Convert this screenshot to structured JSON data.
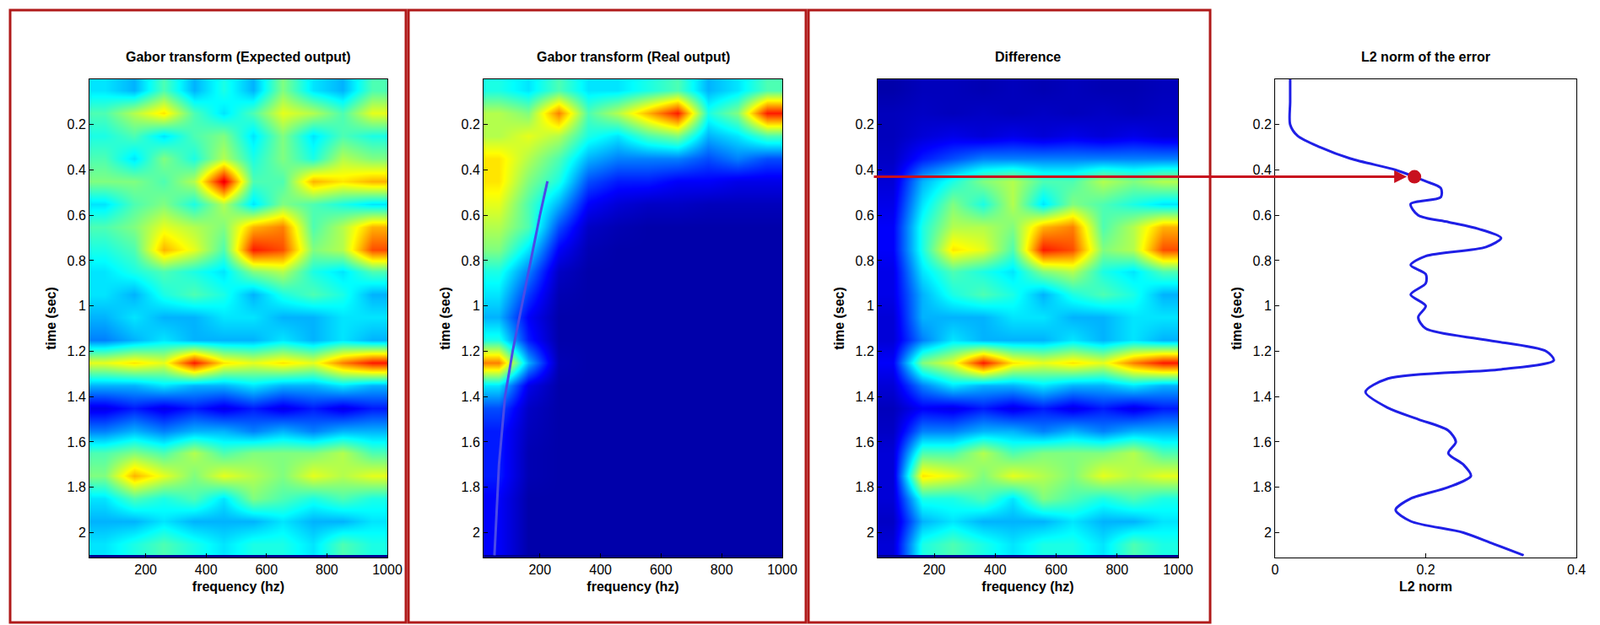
{
  "chart_data": [
    {
      "type": "heatmap",
      "title": "Gabor transform (Expected output)",
      "x_label": "frequency (hz)",
      "y_label": "time (sec)",
      "x": [
        63,
        162,
        261,
        359,
        458,
        557,
        655,
        754,
        852,
        951
      ],
      "y": [
        0.05,
        0.15,
        0.25,
        0.35,
        0.45,
        0.55,
        0.65,
        0.75,
        0.85,
        0.95,
        1.05,
        1.15,
        1.25,
        1.35,
        1.45,
        1.55,
        1.65,
        1.75,
        1.85,
        1.95,
        2.05
      ],
      "z": [
        [
          0.35,
          0.3,
          0.45,
          0.3,
          0.4,
          0.3,
          0.5,
          0.35,
          0.3,
          0.45
        ],
        [
          0.45,
          0.55,
          0.65,
          0.45,
          0.35,
          0.45,
          0.6,
          0.55,
          0.45,
          0.6
        ],
        [
          0.4,
          0.45,
          0.35,
          0.45,
          0.5,
          0.35,
          0.5,
          0.35,
          0.45,
          0.4
        ],
        [
          0.45,
          0.35,
          0.5,
          0.4,
          0.55,
          0.4,
          0.5,
          0.4,
          0.55,
          0.5
        ],
        [
          0.5,
          0.5,
          0.45,
          0.55,
          0.9,
          0.45,
          0.45,
          0.7,
          0.65,
          0.7
        ],
        [
          0.35,
          0.45,
          0.5,
          0.4,
          0.55,
          0.35,
          0.5,
          0.45,
          0.4,
          0.35
        ],
        [
          0.45,
          0.5,
          0.6,
          0.55,
          0.5,
          0.7,
          0.75,
          0.45,
          0.55,
          0.7
        ],
        [
          0.4,
          0.45,
          0.7,
          0.6,
          0.45,
          0.85,
          0.8,
          0.5,
          0.55,
          0.8
        ],
        [
          0.35,
          0.4,
          0.45,
          0.4,
          0.35,
          0.5,
          0.55,
          0.4,
          0.35,
          0.45
        ],
        [
          0.35,
          0.3,
          0.4,
          0.45,
          0.4,
          0.3,
          0.4,
          0.45,
          0.4,
          0.3
        ],
        [
          0.3,
          0.35,
          0.3,
          0.3,
          0.35,
          0.35,
          0.3,
          0.3,
          0.35,
          0.35
        ],
        [
          0.25,
          0.3,
          0.35,
          0.3,
          0.3,
          0.3,
          0.35,
          0.3,
          0.35,
          0.3
        ],
        [
          0.6,
          0.65,
          0.6,
          0.85,
          0.65,
          0.6,
          0.65,
          0.6,
          0.75,
          0.85
        ],
        [
          0.3,
          0.3,
          0.35,
          0.3,
          0.3,
          0.35,
          0.3,
          0.3,
          0.35,
          0.3
        ],
        [
          0.1,
          0.15,
          0.1,
          0.15,
          0.1,
          0.15,
          0.1,
          0.15,
          0.1,
          0.15
        ],
        [
          0.25,
          0.3,
          0.25,
          0.3,
          0.3,
          0.25,
          0.3,
          0.25,
          0.3,
          0.3
        ],
        [
          0.45,
          0.5,
          0.45,
          0.55,
          0.45,
          0.5,
          0.5,
          0.5,
          0.55,
          0.45
        ],
        [
          0.5,
          0.7,
          0.6,
          0.5,
          0.6,
          0.55,
          0.5,
          0.6,
          0.55,
          0.6
        ],
        [
          0.35,
          0.45,
          0.4,
          0.45,
          0.35,
          0.5,
          0.45,
          0.4,
          0.45,
          0.4
        ],
        [
          0.3,
          0.3,
          0.35,
          0.3,
          0.3,
          0.3,
          0.35,
          0.3,
          0.3,
          0.35
        ],
        [
          0.35,
          0.4,
          0.45,
          0.4,
          0.35,
          0.4,
          0.4,
          0.35,
          0.45,
          0.4
        ]
      ],
      "zlim": [
        0,
        1
      ],
      "xlim": [
        14,
        1000
      ],
      "xticks": [
        200,
        400,
        600,
        800,
        1000
      ],
      "ylim": [
        0,
        2.11
      ],
      "yticks": [
        0.2,
        0.4,
        0.6,
        0.8,
        1,
        1.2,
        1.4,
        1.6,
        1.8,
        2
      ]
    },
    {
      "type": "heatmap",
      "title": "Gabor transform (Real output)",
      "x_label": "frequency (hz)",
      "y_label": "time (sec)",
      "x": [
        63,
        162,
        261,
        359,
        458,
        557,
        655,
        754,
        852,
        951
      ],
      "y": [
        0.05,
        0.15,
        0.25,
        0.35,
        0.45,
        0.55,
        0.65,
        0.75,
        0.85,
        0.95,
        1.05,
        1.15,
        1.25,
        1.35,
        1.45,
        1.55,
        1.65,
        1.75,
        1.85,
        1.95,
        2.05
      ],
      "z": [
        [
          0.4,
          0.35,
          0.45,
          0.35,
          0.35,
          0.4,
          0.45,
          0.3,
          0.35,
          0.45
        ],
        [
          0.55,
          0.5,
          0.75,
          0.45,
          0.55,
          0.7,
          0.85,
          0.4,
          0.5,
          0.85
        ],
        [
          0.55,
          0.6,
          0.55,
          0.4,
          0.35,
          0.45,
          0.5,
          0.3,
          0.35,
          0.45
        ],
        [
          0.65,
          0.55,
          0.45,
          0.3,
          0.25,
          0.25,
          0.25,
          0.2,
          0.25,
          0.2
        ],
        [
          0.65,
          0.5,
          0.4,
          0.2,
          0.15,
          0.15,
          0.12,
          0.12,
          0.1,
          0.1
        ],
        [
          0.6,
          0.45,
          0.3,
          0.12,
          0.08,
          0.06,
          0.06,
          0.05,
          0.05,
          0.05
        ],
        [
          0.55,
          0.45,
          0.2,
          0.06,
          0.04,
          0.03,
          0.03,
          0.03,
          0.03,
          0.03
        ],
        [
          0.5,
          0.35,
          0.12,
          0.04,
          0.03,
          0.03,
          0.03,
          0.03,
          0.03,
          0.03
        ],
        [
          0.4,
          0.25,
          0.06,
          0.03,
          0.03,
          0.03,
          0.03,
          0.03,
          0.03,
          0.03
        ],
        [
          0.35,
          0.18,
          0.04,
          0.03,
          0.03,
          0.03,
          0.03,
          0.03,
          0.03,
          0.03
        ],
        [
          0.3,
          0.12,
          0.03,
          0.03,
          0.03,
          0.03,
          0.03,
          0.03,
          0.03,
          0.03
        ],
        [
          0.4,
          0.15,
          0.03,
          0.03,
          0.03,
          0.03,
          0.03,
          0.03,
          0.03,
          0.03
        ],
        [
          0.75,
          0.3,
          0.04,
          0.03,
          0.03,
          0.03,
          0.03,
          0.03,
          0.03,
          0.03
        ],
        [
          0.35,
          0.1,
          0.03,
          0.03,
          0.03,
          0.03,
          0.03,
          0.03,
          0.03,
          0.03
        ],
        [
          0.2,
          0.06,
          0.03,
          0.03,
          0.03,
          0.03,
          0.03,
          0.03,
          0.03,
          0.03
        ],
        [
          0.15,
          0.05,
          0.03,
          0.03,
          0.03,
          0.03,
          0.03,
          0.03,
          0.03,
          0.03
        ],
        [
          0.15,
          0.04,
          0.03,
          0.03,
          0.03,
          0.03,
          0.03,
          0.03,
          0.03,
          0.03
        ],
        [
          0.15,
          0.04,
          0.03,
          0.03,
          0.03,
          0.03,
          0.03,
          0.03,
          0.03,
          0.03
        ],
        [
          0.12,
          0.03,
          0.03,
          0.03,
          0.03,
          0.03,
          0.03,
          0.03,
          0.03,
          0.03
        ],
        [
          0.12,
          0.03,
          0.03,
          0.03,
          0.03,
          0.03,
          0.03,
          0.03,
          0.03,
          0.03
        ],
        [
          0.12,
          0.03,
          0.03,
          0.03,
          0.03,
          0.03,
          0.03,
          0.03,
          0.03,
          0.03
        ]
      ],
      "zlim": [
        0,
        1
      ],
      "curve": {
        "x": [
          225,
          200,
          170,
          140,
          110,
          85,
          65,
          50
        ],
        "y": [
          0.45,
          0.6,
          0.8,
          1.0,
          1.2,
          1.4,
          1.7,
          2.1
        ],
        "color": "#4a4ae8"
      },
      "xlim": [
        14,
        1000
      ],
      "xticks": [
        200,
        400,
        600,
        800,
        1000
      ],
      "ylim": [
        0,
        2.11
      ],
      "yticks": [
        0.2,
        0.4,
        0.6,
        0.8,
        1,
        1.2,
        1.4,
        1.6,
        1.8,
        2
      ]
    },
    {
      "type": "heatmap",
      "title": "Difference",
      "x_label": "frequency (hz)",
      "y_label": "time (sec)",
      "x": [
        63,
        162,
        261,
        359,
        458,
        557,
        655,
        754,
        852,
        951
      ],
      "y": [
        0.05,
        0.15,
        0.25,
        0.35,
        0.45,
        0.55,
        0.65,
        0.75,
        0.85,
        0.95,
        1.05,
        1.15,
        1.25,
        1.35,
        1.45,
        1.55,
        1.65,
        1.75,
        1.85,
        1.95,
        2.05
      ],
      "z": [
        [
          0.03,
          0.05,
          0.05,
          0.04,
          0.05,
          0.04,
          0.05,
          0.04,
          0.04,
          0.05
        ],
        [
          0.05,
          0.06,
          0.05,
          0.06,
          0.05,
          0.06,
          0.05,
          0.06,
          0.05,
          0.06
        ],
        [
          0.05,
          0.08,
          0.1,
          0.08,
          0.1,
          0.08,
          0.1,
          0.08,
          0.1,
          0.08
        ],
        [
          0.06,
          0.15,
          0.2,
          0.25,
          0.25,
          0.25,
          0.25,
          0.25,
          0.25,
          0.25
        ],
        [
          0.08,
          0.3,
          0.4,
          0.5,
          0.55,
          0.45,
          0.45,
          0.55,
          0.5,
          0.55
        ],
        [
          0.1,
          0.35,
          0.5,
          0.4,
          0.55,
          0.35,
          0.5,
          0.45,
          0.4,
          0.35
        ],
        [
          0.12,
          0.4,
          0.55,
          0.55,
          0.5,
          0.7,
          0.75,
          0.45,
          0.55,
          0.7
        ],
        [
          0.12,
          0.4,
          0.65,
          0.6,
          0.45,
          0.85,
          0.8,
          0.5,
          0.55,
          0.8
        ],
        [
          0.1,
          0.35,
          0.45,
          0.4,
          0.35,
          0.5,
          0.55,
          0.4,
          0.35,
          0.45
        ],
        [
          0.1,
          0.3,
          0.4,
          0.45,
          0.4,
          0.3,
          0.4,
          0.45,
          0.4,
          0.3
        ],
        [
          0.08,
          0.3,
          0.3,
          0.3,
          0.35,
          0.35,
          0.3,
          0.3,
          0.35,
          0.35
        ],
        [
          0.08,
          0.25,
          0.35,
          0.3,
          0.3,
          0.3,
          0.35,
          0.3,
          0.35,
          0.3
        ],
        [
          0.12,
          0.5,
          0.6,
          0.85,
          0.65,
          0.6,
          0.65,
          0.6,
          0.75,
          0.85
        ],
        [
          0.08,
          0.25,
          0.35,
          0.3,
          0.3,
          0.35,
          0.3,
          0.3,
          0.35,
          0.3
        ],
        [
          0.05,
          0.12,
          0.1,
          0.15,
          0.1,
          0.15,
          0.1,
          0.15,
          0.1,
          0.15
        ],
        [
          0.06,
          0.25,
          0.25,
          0.3,
          0.3,
          0.25,
          0.3,
          0.25,
          0.3,
          0.3
        ],
        [
          0.08,
          0.45,
          0.45,
          0.55,
          0.45,
          0.5,
          0.5,
          0.5,
          0.55,
          0.45
        ],
        [
          0.08,
          0.65,
          0.6,
          0.5,
          0.6,
          0.55,
          0.5,
          0.6,
          0.55,
          0.6
        ],
        [
          0.08,
          0.4,
          0.4,
          0.45,
          0.35,
          0.5,
          0.45,
          0.4,
          0.45,
          0.4
        ],
        [
          0.06,
          0.3,
          0.35,
          0.3,
          0.3,
          0.3,
          0.35,
          0.3,
          0.3,
          0.35
        ],
        [
          0.08,
          0.4,
          0.45,
          0.4,
          0.35,
          0.4,
          0.4,
          0.35,
          0.45,
          0.4
        ]
      ],
      "zlim": [
        0,
        1
      ],
      "xlim": [
        14,
        1000
      ],
      "xticks": [
        200,
        400,
        600,
        800,
        1000
      ],
      "ylim": [
        0,
        2.11
      ],
      "yticks": [
        0.2,
        0.4,
        0.6,
        0.8,
        1,
        1.2,
        1.4,
        1.6,
        1.8,
        2
      ]
    },
    {
      "type": "line",
      "title": "L2 norm of the error",
      "x_label": "L2 norm",
      "y_label": "time (sec)",
      "x": [
        0.02,
        0.02,
        0.02,
        0.03,
        0.06,
        0.1,
        0.16,
        0.185,
        0.2,
        0.22,
        0.22,
        0.18,
        0.19,
        0.23,
        0.27,
        0.3,
        0.28,
        0.2,
        0.18,
        0.2,
        0.2,
        0.18,
        0.2,
        0.19,
        0.2,
        0.28,
        0.36,
        0.37,
        0.3,
        0.15,
        0.12,
        0.15,
        0.19,
        0.23,
        0.24,
        0.23,
        0.25,
        0.26,
        0.23,
        0.18,
        0.16,
        0.18,
        0.25,
        0.29,
        0.33
      ],
      "y": [
        0.0,
        0.1,
        0.2,
        0.25,
        0.3,
        0.35,
        0.4,
        0.43,
        0.45,
        0.48,
        0.52,
        0.55,
        0.6,
        0.63,
        0.66,
        0.7,
        0.74,
        0.78,
        0.82,
        0.86,
        0.9,
        0.95,
        1.0,
        1.05,
        1.1,
        1.15,
        1.2,
        1.24,
        1.28,
        1.32,
        1.38,
        1.45,
        1.5,
        1.55,
        1.6,
        1.65,
        1.7,
        1.75,
        1.8,
        1.85,
        1.9,
        1.95,
        2.0,
        2.05,
        2.1
      ],
      "color": "#1f1fe6",
      "highlight": {
        "x": 0.185,
        "y": 0.43,
        "color": "#c8101e"
      },
      "xlim": [
        0,
        0.4
      ],
      "xticks": [
        0,
        0.2,
        0.4
      ],
      "ylim": [
        0,
        2.11
      ],
      "yticks": [
        0.2,
        0.4,
        0.6,
        0.8,
        1,
        1.2,
        1.4,
        1.6,
        1.8,
        2
      ]
    }
  ]
}
